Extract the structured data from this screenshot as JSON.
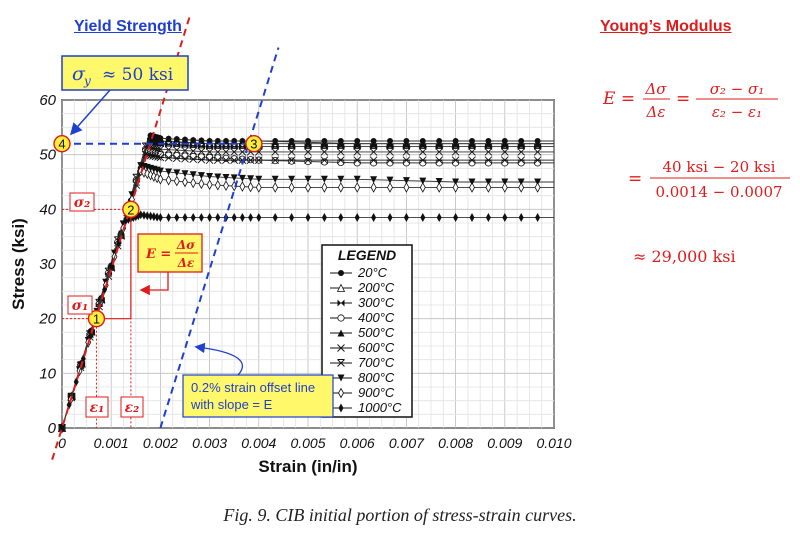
{
  "headings": {
    "yield": "Yield Strength",
    "modulus": "Young’s Modulus"
  },
  "yield_box": {
    "symbol": "σ",
    "subscript": "y",
    "value": "≈ 50 ksi"
  },
  "modulus_equations": {
    "line1_lhs": "E =",
    "line1_frac1_num": "Δσ",
    "line1_frac1_den": "Δε",
    "line1_eq": "=",
    "line1_frac2_num": "σ₂ − σ₁",
    "line1_frac2_den": "ε₂ − ε₁",
    "line2_eq": "=",
    "line2_num": "40 ksi − 20 ksi",
    "line2_den": "0.0014 − 0.0007",
    "line3": "≈ 29,000 ksi"
  },
  "annotations": {
    "sigma2": "σ₂",
    "sigma1": "σ₁",
    "eps1": "ε₁",
    "eps2": "ε₂",
    "e_box_lhs": "E =",
    "e_box_num": "Δσ",
    "e_box_den": "Δε",
    "offset_line1": "0.2% strain offset line",
    "offset_line2": "with slope = E",
    "marker1": "1",
    "marker2": "2",
    "marker3": "3",
    "marker4": "4"
  },
  "caption": "Fig. 9.  CIB initial portion of stress-strain curves.",
  "colors": {
    "red": "#e01b1b",
    "blue": "#1f3fd0",
    "marker_fill": "#ffef3a",
    "box_fill": "#fff86b"
  },
  "chart_data": {
    "type": "line",
    "title": "",
    "xlabel": "Strain (in/in)",
    "ylabel": "Stress (ksi)",
    "xlim": [
      0,
      0.01
    ],
    "ylim": [
      0,
      60
    ],
    "xticks": [
      0,
      0.001,
      0.002,
      0.003,
      0.004,
      0.005,
      0.006,
      0.007,
      0.008,
      0.009,
      0.01
    ],
    "xtick_labels": [
      "0",
      "0.001",
      "0.002",
      "0.003",
      "0.004",
      "0.005",
      "0.006",
      "0.007",
      "0.008",
      "0.009",
      "0.010"
    ],
    "yticks": [
      0,
      10,
      20,
      30,
      40,
      50,
      60
    ],
    "ytick_labels": [
      "0",
      "10",
      "20",
      "30",
      "40",
      "50",
      "60"
    ],
    "grid": true,
    "legend": {
      "title": "LEGEND",
      "placement": "center-right"
    },
    "series": [
      {
        "name": "20°C",
        "marker": "dot",
        "x": [
          0,
          0.0018,
          0.002,
          0.003,
          0.004,
          0.006,
          0.008,
          0.01
        ],
        "y": [
          0,
          53.5,
          53,
          52.5,
          52.5,
          52.5,
          52.5,
          52.5
        ]
      },
      {
        "name": "200°C",
        "marker": "triangle-open",
        "x": [
          0,
          0.0018,
          0.002,
          0.003,
          0.004,
          0.006,
          0.008,
          0.01
        ],
        "y": [
          0,
          53,
          52.5,
          52,
          52,
          52,
          52,
          52
        ]
      },
      {
        "name": "300°C",
        "marker": "bowtie",
        "x": [
          0,
          0.0018,
          0.002,
          0.003,
          0.004,
          0.006,
          0.008,
          0.01
        ],
        "y": [
          0,
          52.5,
          52,
          51.5,
          51.5,
          51.5,
          51.5,
          51.5
        ]
      },
      {
        "name": "400°C",
        "marker": "circle-open",
        "x": [
          0,
          0.0017,
          0.002,
          0.003,
          0.004,
          0.006,
          0.008,
          0.01
        ],
        "y": [
          0,
          51,
          50,
          49.5,
          49,
          48.5,
          48.5,
          48.5
        ]
      },
      {
        "name": "500°C",
        "marker": "triangle",
        "x": [
          0,
          0.0018,
          0.002,
          0.003,
          0.004,
          0.006,
          0.008,
          0.01
        ],
        "y": [
          0,
          53.5,
          53,
          52.5,
          52.5,
          52,
          52,
          52
        ]
      },
      {
        "name": "600°C",
        "marker": "arrow-x",
        "x": [
          0,
          0.0017,
          0.002,
          0.003,
          0.004,
          0.006,
          0.008,
          0.01
        ],
        "y": [
          0,
          50,
          49.5,
          49,
          49,
          49,
          49,
          49
        ]
      },
      {
        "name": "700°C",
        "marker": "x-bar",
        "x": [
          0,
          0.0017,
          0.002,
          0.003,
          0.004,
          0.006,
          0.008,
          0.01
        ],
        "y": [
          0,
          51.5,
          51,
          50.5,
          50.5,
          50.5,
          50.5,
          50.5
        ]
      },
      {
        "name": "800°C",
        "marker": "triangle-down",
        "x": [
          0,
          0.0016,
          0.002,
          0.003,
          0.004,
          0.006,
          0.008,
          0.01
        ],
        "y": [
          0,
          48,
          47,
          46,
          45.5,
          45.5,
          45,
          45
        ]
      },
      {
        "name": "900°C",
        "marker": "diamond-open",
        "x": [
          0,
          0.0016,
          0.002,
          0.003,
          0.004,
          0.006,
          0.008,
          0.01
        ],
        "y": [
          0,
          47,
          45.5,
          44.5,
          44,
          44,
          44,
          44
        ]
      },
      {
        "name": "1000°C",
        "marker": "diamond",
        "x": [
          0,
          0.0013,
          0.0016,
          0.002,
          0.003,
          0.004,
          0.006,
          0.008,
          0.01
        ],
        "y": [
          0,
          38,
          39,
          38.5,
          38.5,
          38.5,
          38.5,
          38.5,
          38.5
        ]
      }
    ],
    "overlays": {
      "elastic_fit_line": {
        "x": [
          -0.0002,
          0.0026
        ],
        "y": [
          -5.8,
          75.4
        ]
      },
      "offset_line": {
        "x": [
          0.002,
          0.0044
        ],
        "y": [
          0,
          69.6
        ]
      },
      "yield_level": 52,
      "points": [
        {
          "label": "1",
          "x": 0.0007,
          "y": 20
        },
        {
          "label": "2",
          "x": 0.0014,
          "y": 40
        },
        {
          "label": "3",
          "x": 0.0039,
          "y": 52
        },
        {
          "label": "4",
          "x": 0.0,
          "y": 52
        }
      ]
    }
  }
}
